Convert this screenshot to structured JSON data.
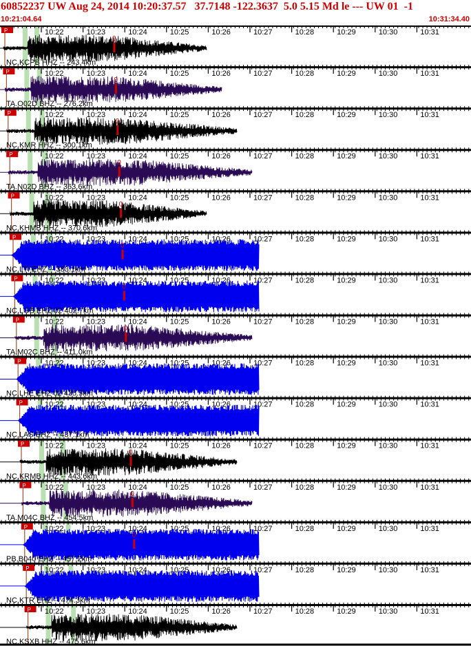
{
  "header": {
    "title": "60852237 UW Aug 24, 2014 10:20:37.57   37.7148 -122.3637  5.0 5.15 Md le --- UW 01  -1",
    "start_time": "10:21:04.64",
    "end_time": "10:31:34.40"
  },
  "time_ticks": [
    "10:22",
    "10:23",
    "10:24",
    "10:25",
    "10:26",
    "10:27",
    "10:28",
    "10:29",
    "10:30",
    "10:31"
  ],
  "colors": {
    "accent_red": "#cc0000",
    "trace_black": "#000000",
    "trace_purple": "#2a0a55",
    "trace_blue": "#0000ee",
    "window_green": "#b9e0b0"
  },
  "traces": [
    {
      "label": "NC.KCPB HHZ -- 243.4km",
      "pick": "P",
      "s_mark": "0",
      "color": "black"
    },
    {
      "label": "TA.O02D BHZ -- 276.2km",
      "pick": "P",
      "s_mark": "0",
      "color": "purple"
    },
    {
      "label": "NC.KMR HHZ -- 300.1km",
      "pick": "P",
      "s_mark": "0",
      "color": "black"
    },
    {
      "label": "TA.N02D BHZ -- 363.6km",
      "pick": "P",
      "s_mark": "0",
      "color": "purple"
    },
    {
      "label": "NC.KHMB HHZ -- 370.6km",
      "pick": "P",
      "s_mark": "0",
      "color": "black"
    },
    {
      "label": "NC.LTI EHZ -- 383.1km",
      "pick": "P",
      "s_mark": "0",
      "color": "blue"
    },
    {
      "label": "NC.LGB EHZ 02 402.7km",
      "pick": "P",
      "s_mark": "0",
      "color": "blue"
    },
    {
      "label": "TA.M02C BHZ -- 411.0km",
      "pick": "P",
      "s_mark": "0",
      "color": "purple"
    },
    {
      "label": "NC.LHE EHZ 02 435.5km",
      "pick": "P",
      "s_mark": "",
      "color": "blue"
    },
    {
      "label": "NC.LAS EHZ -- 437.1km",
      "pick": "P",
      "s_mark": "",
      "color": "blue"
    },
    {
      "label": "NC.KRMB HHZ -- 443.6km",
      "pick": "P",
      "s_mark": "0",
      "color": "black"
    },
    {
      "label": "TA.M04C BHZ -- 454.5km",
      "pick": "P",
      "s_mark": "0",
      "color": "purple"
    },
    {
      "label": "PB.B040 EHZ -- 457.2km",
      "pick": "P",
      "s_mark": "0",
      "color": "blue"
    },
    {
      "label": "NC.KTR EHZ -- 474.3km",
      "pick": "P",
      "s_mark": "",
      "color": "blue"
    },
    {
      "label": "NC.KSXB HHZ -- 475.6km",
      "pick": "P",
      "s_mark": "",
      "color": "black"
    }
  ]
}
